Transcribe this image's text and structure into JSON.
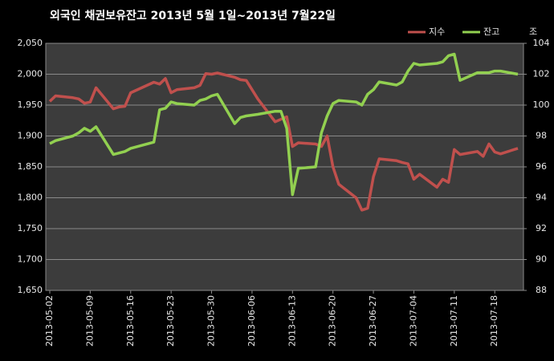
{
  "chart_data": {
    "type": "line",
    "title": "외국인 채권보유잔고  2013년 5월 1일~2013년 7월22일",
    "y2_label": "조",
    "x": [
      "2013-05-02",
      "2013-05-03",
      "2013-05-06",
      "2013-05-07",
      "2013-05-08",
      "2013-05-09",
      "2013-05-10",
      "2013-05-13",
      "2013-05-14",
      "2013-05-15",
      "2013-05-16",
      "2013-05-20",
      "2013-05-21",
      "2013-05-22",
      "2013-05-23",
      "2013-05-24",
      "2013-05-27",
      "2013-05-28",
      "2013-05-29",
      "2013-05-30",
      "2013-05-31",
      "2013-06-03",
      "2013-06-04",
      "2013-06-05",
      "2013-06-07",
      "2013-06-10",
      "2013-06-11",
      "2013-06-12",
      "2013-06-13",
      "2013-06-14",
      "2013-06-17",
      "2013-06-18",
      "2013-06-19",
      "2013-06-20",
      "2013-06-21",
      "2013-06-24",
      "2013-06-25",
      "2013-06-26",
      "2013-06-27",
      "2013-06-28",
      "2013-07-01",
      "2013-07-02",
      "2013-07-03",
      "2013-07-04",
      "2013-07-05",
      "2013-07-08",
      "2013-07-09",
      "2013-07-10",
      "2013-07-11",
      "2013-07-12",
      "2013-07-15",
      "2013-07-16",
      "2013-07-17",
      "2013-07-18",
      "2013-07-19",
      "2013-07-22"
    ],
    "xlim": [
      "2013-05-02",
      "2013-07-22"
    ],
    "xticks": [
      "2013-05-02",
      "2013-05-09",
      "2013-05-16",
      "2013-05-23",
      "2013-05-30",
      "2013-06-06",
      "2013-06-13",
      "2013-06-20",
      "2013-06-27",
      "2013-07-04",
      "2013-07-11",
      "2013-07-18"
    ],
    "series": [
      {
        "name": "지수",
        "color": "#c0504d",
        "axis": "y",
        "values": [
          1956,
          1965,
          1962,
          1960,
          1953,
          1955,
          1978,
          1944,
          1947,
          1948,
          1970,
          1987,
          1984,
          1993,
          1970,
          1975,
          1978,
          1982,
          2001,
          2000,
          2002,
          1995,
          1991,
          1990,
          1960,
          1923,
          1927,
          1931,
          1883,
          1889,
          1887,
          1883,
          1900,
          1850,
          1822,
          1800,
          1780,
          1783,
          1834,
          1863,
          1860,
          1857,
          1855,
          1830,
          1838,
          1817,
          1830,
          1825,
          1878,
          1870,
          1875,
          1867,
          1887,
          1874,
          1871,
          1880
        ]
      },
      {
        "name": "잔고",
        "color": "#92d050",
        "axis": "y2",
        "values": [
          97.5,
          97.7,
          98.0,
          98.2,
          98.5,
          98.3,
          98.6,
          96.8,
          96.9,
          97.0,
          97.2,
          97.6,
          99.7,
          99.8,
          100.2,
          100.1,
          100.0,
          100.3,
          100.4,
          100.6,
          100.7,
          98.8,
          99.2,
          99.3,
          99.4,
          99.6,
          99.6,
          98.5,
          94.2,
          95.9,
          96.0,
          98.2,
          99.3,
          100.1,
          100.3,
          100.2,
          100.0,
          100.7,
          101.0,
          101.5,
          101.3,
          101.5,
          102.2,
          102.7,
          102.6,
          102.7,
          102.8,
          103.2,
          103.3,
          101.6,
          102.1,
          102.1,
          102.1,
          102.2,
          102.2,
          102.0
        ]
      }
    ],
    "ylim": [
      1650,
      2050
    ],
    "yticks": [
      {
        "value": 1650,
        "label": "1,650"
      },
      {
        "value": 1700,
        "label": "1,700"
      },
      {
        "value": 1750,
        "label": "1,750"
      },
      {
        "value": 1800,
        "label": "1,800"
      },
      {
        "value": 1850,
        "label": "1,850"
      },
      {
        "value": 1900,
        "label": "1,900"
      },
      {
        "value": 1950,
        "label": "1,950"
      },
      {
        "value": 2000,
        "label": "2,000"
      },
      {
        "value": 2050,
        "label": "2,050"
      }
    ],
    "y2lim": [
      88,
      104
    ],
    "y2ticks": [
      88,
      90,
      92,
      94,
      96,
      98,
      100,
      102,
      104
    ],
    "grid": true
  }
}
